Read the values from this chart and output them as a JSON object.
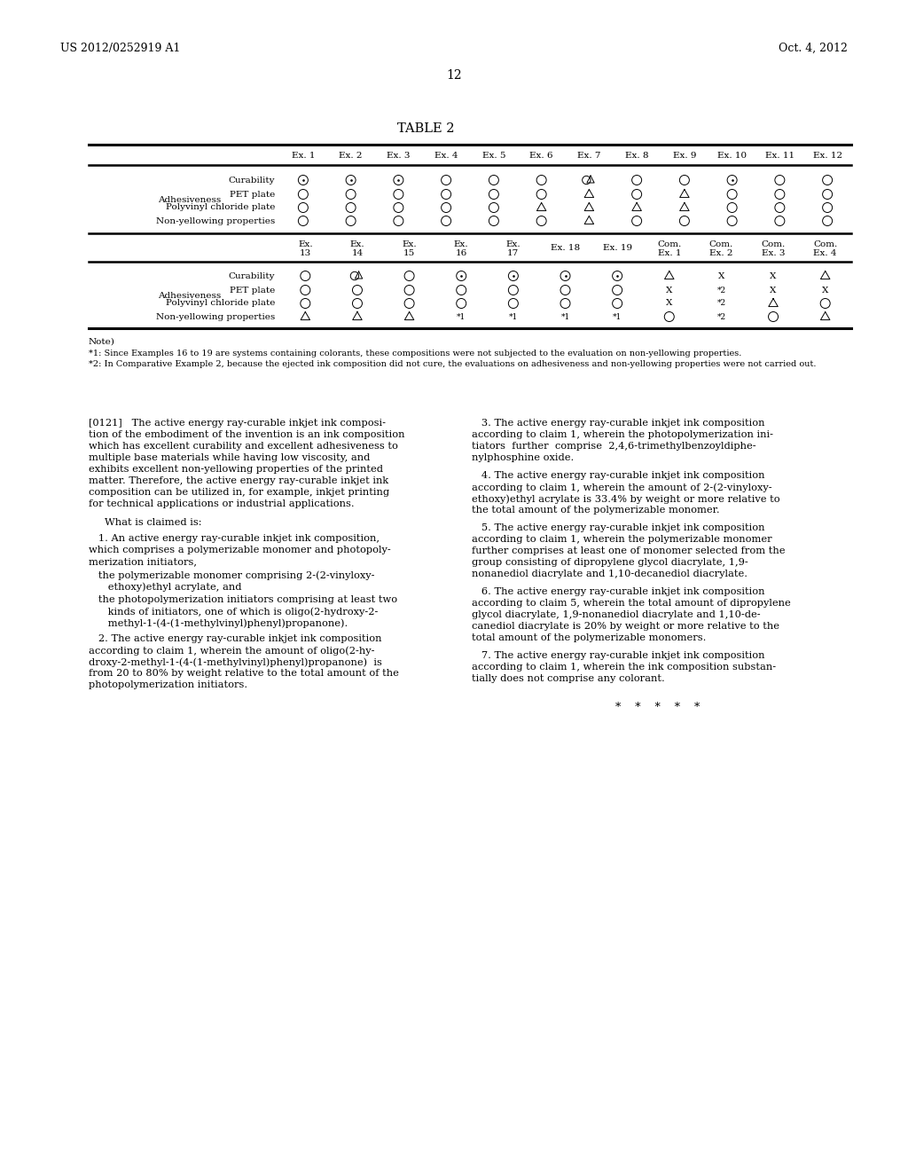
{
  "header_left": "US 2012/0252919 A1",
  "header_right": "Oct. 4, 2012",
  "page_number": "12",
  "table_title": "TABLE 2",
  "background_color": "#ffffff",
  "text_color": "#000000",
  "note_line1": "Note)",
  "note_line2": "*1: Since Examples 16 to 19 are systems containing colorants, these compositions were not subjected to the evaluation on non-yellowing properties.",
  "note_line3": "*2: In Comparative Example 2, because the ejected ink composition did not cure, the evaluations on adhesiveness and non-yellowing properties were not carried out.",
  "col_labels_top": [
    "Ex. 1",
    "Ex. 2",
    "Ex. 3",
    "Ex. 4",
    "Ex. 5",
    "Ex. 6",
    "Ex. 7",
    "Ex. 8",
    "Ex. 9",
    "Ex. 10",
    "Ex. 11",
    "Ex. 12"
  ],
  "row_data_top_curability": [
    "od",
    "od",
    "od",
    "o",
    "o",
    "o",
    "ot",
    "o",
    "o",
    "od",
    "o",
    "o"
  ],
  "row_data_top_pet": [
    "o",
    "o",
    "o",
    "o",
    "o",
    "o",
    "t",
    "o",
    "t",
    "o",
    "o",
    "o"
  ],
  "row_data_top_polyvinyl": [
    "o",
    "o",
    "o",
    "o",
    "o",
    "t",
    "t",
    "t",
    "t",
    "o",
    "o",
    "o"
  ],
  "row_data_top_nonyellow": [
    "o",
    "o",
    "o",
    "o",
    "o",
    "o",
    "t",
    "o",
    "o",
    "o",
    "o",
    "o"
  ],
  "col_labels_bot_1": [
    "Ex.",
    "Ex.",
    "Ex.",
    "Ex.",
    "Ex.",
    "",
    "",
    "Com.",
    "Com.",
    "Com.",
    "Com."
  ],
  "col_labels_bot_2": [
    "13",
    "14",
    "15",
    "16",
    "17",
    "Ex. 18",
    "Ex. 19",
    "Ex. 1",
    "Ex. 2",
    "Ex. 3",
    "Ex. 4"
  ],
  "row_data_bot_curability": [
    "o",
    "ot",
    "o",
    "od",
    "od",
    "od",
    "od",
    "t",
    "X",
    "X",
    "t"
  ],
  "row_data_bot_pet": [
    "o",
    "o",
    "o",
    "o",
    "o",
    "o",
    "o",
    "X",
    "s2",
    "X",
    "X"
  ],
  "row_data_bot_polyvinyl": [
    "o",
    "o",
    "o",
    "o",
    "o",
    "o",
    "o",
    "X",
    "s2",
    "t",
    "o"
  ],
  "row_data_bot_nonyellow": [
    "t",
    "t",
    "t",
    "s1",
    "s1",
    "s1",
    "s1",
    "o",
    "s2",
    "o",
    "t"
  ]
}
